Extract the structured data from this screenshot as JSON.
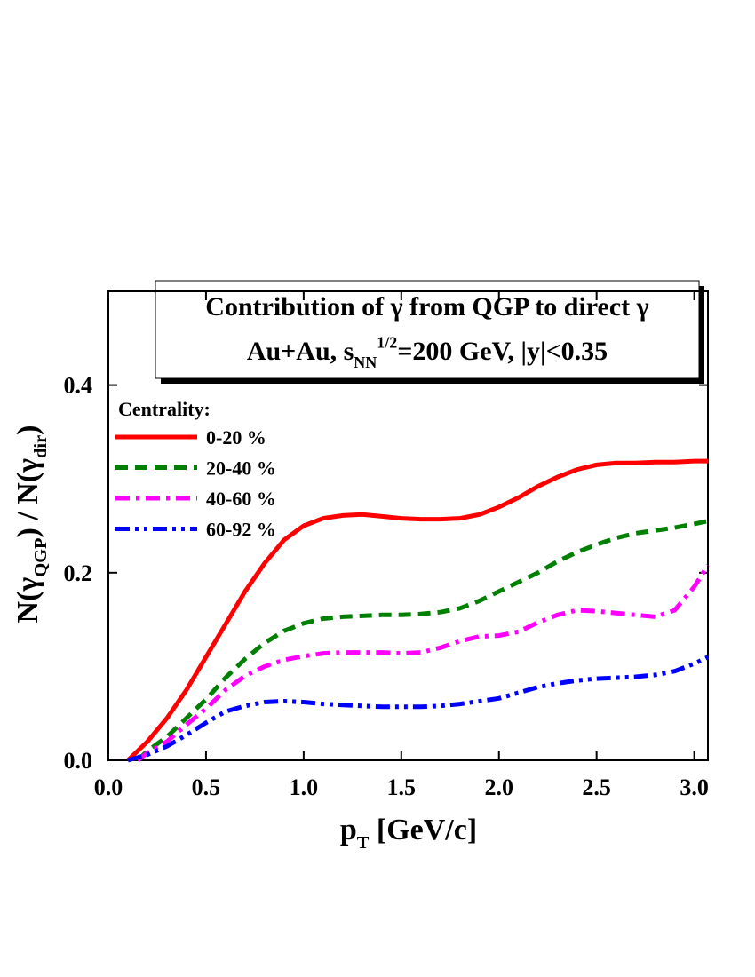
{
  "chart_data": {
    "type": "line",
    "title": "Contribution of γ from QGP to direct γ",
    "subtitle_parts": [
      {
        "text": "Au+Au, s"
      },
      {
        "text": "NN",
        "shift": "sub"
      },
      {
        "text": "1/2",
        "shift": "sup"
      },
      {
        "text": "=200 GeV, |y|<0.35"
      }
    ],
    "xlabel_parts": [
      {
        "text": "p"
      },
      {
        "text": "T",
        "shift": "sub"
      },
      {
        "text": " [GeV/c]"
      }
    ],
    "ylabel_parts": [
      {
        "text": "N(γ"
      },
      {
        "text": "QGP",
        "shift": "sub"
      },
      {
        "text": ") / N(γ"
      },
      {
        "text": "dir",
        "shift": "sub"
      },
      {
        "text": ")"
      }
    ],
    "legend_title": "Centrality:",
    "xlim": [
      0,
      3.07
    ],
    "ylim": [
      0,
      0.5
    ],
    "xticks": [
      {
        "value": 0,
        "label": "0.0"
      },
      0.5,
      {
        "value": 1,
        "label": "1.0"
      },
      1.5,
      {
        "value": 2,
        "label": "2.0"
      },
      2.5,
      {
        "value": 3,
        "label": "3.0"
      }
    ],
    "yticks": [
      {
        "value": 0,
        "label": "0.0"
      },
      0.2,
      0.4
    ],
    "series": [
      {
        "name": "0-20 %",
        "color": "#ff0000",
        "dash": "solid",
        "x": [
          0.1,
          0.2,
          0.3,
          0.4,
          0.5,
          0.6,
          0.7,
          0.8,
          0.9,
          1.0,
          1.1,
          1.2,
          1.3,
          1.4,
          1.5,
          1.6,
          1.7,
          1.8,
          1.9,
          2.0,
          2.1,
          2.2,
          2.3,
          2.4,
          2.5,
          2.6,
          2.7,
          2.8,
          2.9,
          3.0,
          3.07
        ],
        "values": [
          0,
          0.02,
          0.045,
          0.075,
          0.11,
          0.145,
          0.18,
          0.21,
          0.235,
          0.25,
          0.258,
          0.261,
          0.262,
          0.26,
          0.258,
          0.257,
          0.257,
          0.258,
          0.262,
          0.27,
          0.28,
          0.292,
          0.302,
          0.31,
          0.315,
          0.317,
          0.317,
          0.318,
          0.318,
          0.319,
          0.319
        ]
      },
      {
        "name": "20-40 %",
        "color": "#008000",
        "dash": "dash",
        "x": [
          0.15,
          0.2,
          0.3,
          0.4,
          0.5,
          0.6,
          0.7,
          0.8,
          0.9,
          1.0,
          1.1,
          1.2,
          1.3,
          1.4,
          1.5,
          1.6,
          1.7,
          1.8,
          1.9,
          2.0,
          2.1,
          2.2,
          2.3,
          2.4,
          2.5,
          2.6,
          2.7,
          2.8,
          2.9,
          3.0,
          3.07
        ],
        "values": [
          0,
          0.01,
          0.025,
          0.045,
          0.065,
          0.088,
          0.108,
          0.125,
          0.138,
          0.146,
          0.151,
          0.153,
          0.154,
          0.155,
          0.155,
          0.156,
          0.158,
          0.162,
          0.17,
          0.18,
          0.19,
          0.2,
          0.212,
          0.222,
          0.23,
          0.237,
          0.242,
          0.245,
          0.248,
          0.252,
          0.255
        ]
      },
      {
        "name": "40-60 %",
        "color": "#ff00ff",
        "dash": "dashdot",
        "x": [
          0.15,
          0.2,
          0.3,
          0.4,
          0.5,
          0.6,
          0.7,
          0.8,
          0.9,
          1.0,
          1.1,
          1.2,
          1.3,
          1.4,
          1.5,
          1.6,
          1.7,
          1.8,
          1.9,
          2.0,
          2.1,
          2.2,
          2.3,
          2.4,
          2.5,
          2.6,
          2.7,
          2.8,
          2.9,
          3.0,
          3.07
        ],
        "values": [
          0,
          0.008,
          0.02,
          0.038,
          0.055,
          0.075,
          0.09,
          0.1,
          0.107,
          0.111,
          0.114,
          0.115,
          0.115,
          0.115,
          0.114,
          0.115,
          0.12,
          0.127,
          0.132,
          0.133,
          0.137,
          0.147,
          0.155,
          0.16,
          0.159,
          0.157,
          0.155,
          0.153,
          0.16,
          0.185,
          0.208
        ]
      },
      {
        "name": "60-92 %",
        "color": "#0000ff",
        "dash": "dashdotdot",
        "x": [
          0.1,
          0.2,
          0.3,
          0.4,
          0.5,
          0.6,
          0.7,
          0.8,
          0.9,
          1.0,
          1.1,
          1.2,
          1.3,
          1.4,
          1.5,
          1.6,
          1.7,
          1.8,
          1.9,
          2.0,
          2.1,
          2.2,
          2.3,
          2.4,
          2.5,
          2.6,
          2.7,
          2.8,
          2.9,
          3.0,
          3.07
        ],
        "values": [
          0,
          0.006,
          0.015,
          0.027,
          0.04,
          0.052,
          0.058,
          0.062,
          0.063,
          0.062,
          0.06,
          0.059,
          0.058,
          0.057,
          0.057,
          0.057,
          0.058,
          0.06,
          0.063,
          0.066,
          0.072,
          0.078,
          0.082,
          0.085,
          0.087,
          0.088,
          0.089,
          0.091,
          0.095,
          0.103,
          0.11
        ]
      }
    ]
  }
}
